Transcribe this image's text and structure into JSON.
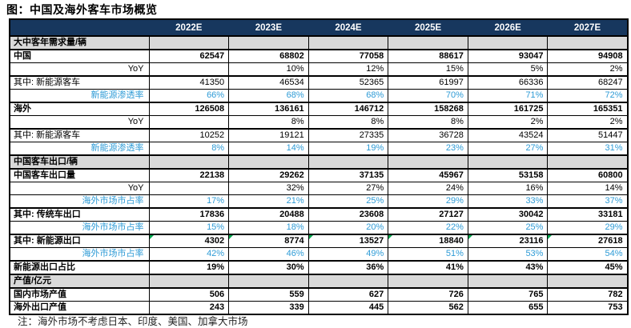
{
  "title": "图：中国及海外客车市场概览",
  "note": "注：海外市场不考虑日本、印度、美国、加拿大市场",
  "colors": {
    "header_bg": "#17375E",
    "header_text": "#FFFFFF",
    "section_bg": "#D9D9D9",
    "highlight_blue": "#2E9BD6",
    "flag_green": "#00A94F",
    "border": "#000000"
  },
  "chart_data": {
    "type": "table",
    "title": "图：中国及海外客车市场概览",
    "columns": [
      "",
      "2022E",
      "2023E",
      "2024E",
      "2025E",
      "2026E",
      "2027E"
    ],
    "rows": [
      {
        "label": "大中客年需求量/辆",
        "style": "section",
        "values": [
          "",
          "",
          "",
          "",
          "",
          ""
        ]
      },
      {
        "label": "中国",
        "style": "bold",
        "values": [
          "62547",
          "68802",
          "77058",
          "88617",
          "93047",
          "94908"
        ]
      },
      {
        "label": "YoY",
        "style": "sub",
        "values": [
          "",
          "10%",
          "12%",
          "15%",
          "5%",
          "2%"
        ]
      },
      {
        "label": "其中: 新能源客车",
        "style": "normal",
        "group_start": true,
        "values": [
          "41350",
          "46534",
          "52365",
          "61997",
          "66336",
          "68247"
        ]
      },
      {
        "label": "新能源渗透率",
        "style": "blue",
        "values": [
          "66%",
          "68%",
          "68%",
          "70%",
          "71%",
          "72%"
        ]
      },
      {
        "label": "海外",
        "style": "bold",
        "group_start": true,
        "values": [
          "126508",
          "136161",
          "146712",
          "158268",
          "161725",
          "165351"
        ]
      },
      {
        "label": "YoY",
        "style": "sub",
        "values": [
          "",
          "8%",
          "8%",
          "8%",
          "2%",
          "2%"
        ]
      },
      {
        "label": "其中: 新能源客车",
        "style": "normal",
        "group_start": true,
        "values": [
          "10252",
          "19121",
          "27335",
          "36728",
          "43524",
          "51447"
        ]
      },
      {
        "label": "新能源渗透率",
        "style": "blue",
        "values": [
          "8%",
          "14%",
          "19%",
          "23%",
          "27%",
          "31%"
        ]
      },
      {
        "label": "中国客车出口/辆",
        "style": "section",
        "values": [
          "",
          "",
          "",
          "",
          "",
          ""
        ]
      },
      {
        "label": "中国客车出口量",
        "style": "bold",
        "values": [
          "22138",
          "29262",
          "37135",
          "45967",
          "53158",
          "60800"
        ]
      },
      {
        "label": "YoY",
        "style": "sub",
        "values": [
          "",
          "32%",
          "27%",
          "24%",
          "16%",
          "14%"
        ]
      },
      {
        "label": "海外市场市占率",
        "style": "blue",
        "values": [
          "17%",
          "21%",
          "25%",
          "29%",
          "33%",
          "37%"
        ]
      },
      {
        "label": "其中: 传统车出口",
        "style": "bold",
        "group_start": true,
        "values": [
          "17836",
          "20488",
          "23608",
          "27127",
          "30042",
          "33181"
        ]
      },
      {
        "label": "海外市场市占率",
        "style": "blue",
        "values": [
          "15%",
          "18%",
          "20%",
          "22%",
          "25%",
          "29%"
        ]
      },
      {
        "label": "其中: 新能源出口",
        "style": "bold",
        "group_start": true,
        "flags": true,
        "values": [
          "4302",
          "8774",
          "13527",
          "18840",
          "23116",
          "27618"
        ]
      },
      {
        "label": "海外市场市占率",
        "style": "blue",
        "values": [
          "42%",
          "46%",
          "49%",
          "51%",
          "53%",
          "54%"
        ]
      },
      {
        "label": "新能源出口占比",
        "style": "bold",
        "group_start": true,
        "values": [
          "19%",
          "30%",
          "36%",
          "41%",
          "43%",
          "45%"
        ]
      },
      {
        "label": "产值/亿元",
        "style": "section",
        "values": [
          "",
          "",
          "",
          "",
          "",
          ""
        ]
      },
      {
        "label": "国内市场产值",
        "style": "bold",
        "values": [
          "506",
          "559",
          "627",
          "726",
          "765",
          "782"
        ]
      },
      {
        "label": "海外出口产值",
        "style": "bold",
        "values": [
          "243",
          "339",
          "445",
          "562",
          "655",
          "753"
        ]
      }
    ]
  }
}
